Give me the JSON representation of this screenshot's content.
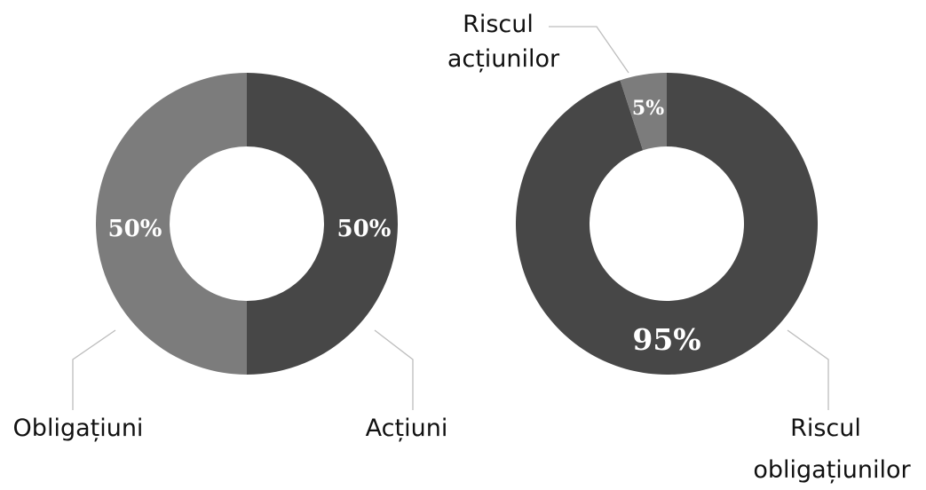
{
  "colors": {
    "dark": "#474747",
    "light": "#7c7c7c",
    "leader": "#bdbdbd",
    "background": "#ffffff"
  },
  "chart_data": [
    {
      "type": "pie",
      "donut": true,
      "slices": [
        {
          "label": "Acțiuni",
          "value": 50,
          "value_label": "50%",
          "color": "#474747"
        },
        {
          "label": "Obligațiuni",
          "value": 50,
          "value_label": "50%",
          "color": "#7c7c7c"
        }
      ]
    },
    {
      "type": "pie",
      "donut": true,
      "slices": [
        {
          "label": "Riscul obligațiunilor",
          "label_lines": [
            "Riscul",
            "obligațiunilor"
          ],
          "value": 95,
          "value_label": "95%",
          "color": "#474747"
        },
        {
          "label": "Riscul acțiunilor",
          "label_lines": [
            "Riscul",
            "acțiunilor"
          ],
          "value": 5,
          "value_label": "5%",
          "color": "#7c7c7c"
        }
      ]
    }
  ]
}
